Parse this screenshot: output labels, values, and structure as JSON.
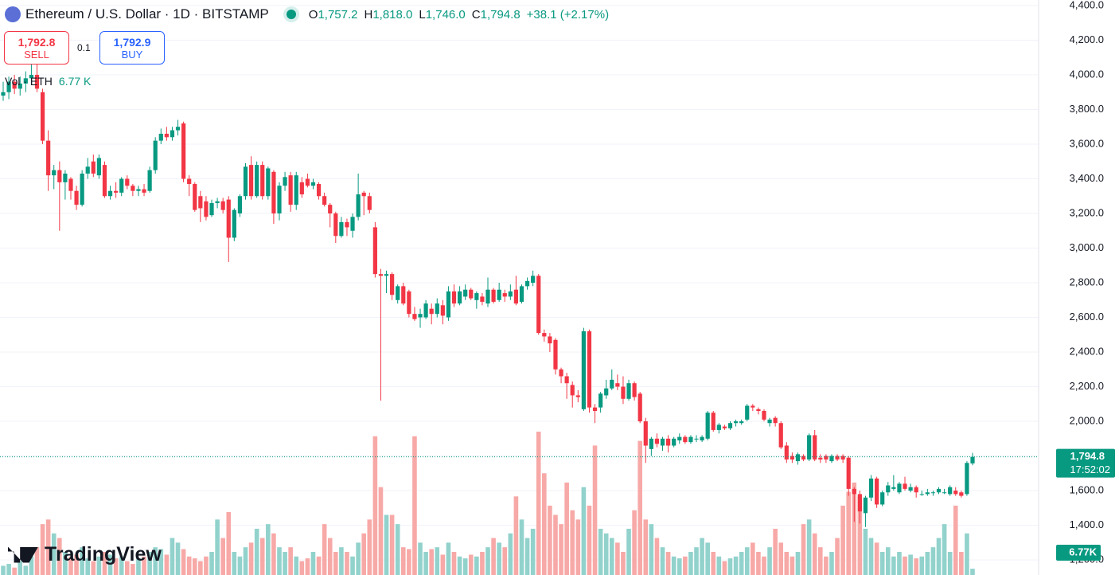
{
  "header": {
    "symbol": "Ethereum / U.S. Dollar · 1D · BITSTAMP",
    "ohlc": [
      {
        "key": "O",
        "value": "1,757.2"
      },
      {
        "key": "H",
        "value": "1,818.0"
      },
      {
        "key": "L",
        "value": "1,746.0"
      },
      {
        "key": "C",
        "value": "1,794.8"
      }
    ],
    "change": "+38.1 (+2.17%)"
  },
  "trade": {
    "sell_price": "1,792.8",
    "sell": "SELL",
    "spread": "0.1",
    "buy_price": "1,792.9",
    "buy": "BUY"
  },
  "volume_legend": {
    "label": "Vol · ETH",
    "value": "6.77 K"
  },
  "brand": "TradingView",
  "chart_data": {
    "type": "candlestick",
    "up_color": "#089981",
    "down_color": "#f23645",
    "up_volume_color": "#92d2cc",
    "down_volume_color": "#f7a9a7",
    "ylim": [
      1113,
      4432
    ],
    "yticks": [
      {
        "value": 1200,
        "label": "1,200.0"
      },
      {
        "value": 1400,
        "label": "1,400.0"
      },
      {
        "value": 1600,
        "label": "1,600.0"
      },
      {
        "value": 1800,
        "label": "1,800.0"
      },
      {
        "value": 2000,
        "label": "2,000.0"
      },
      {
        "value": 2200,
        "label": "2,200.0"
      },
      {
        "value": 2400,
        "label": "2,400.0"
      },
      {
        "value": 2600,
        "label": "2,600.0"
      },
      {
        "value": 2800,
        "label": "2,800.0"
      },
      {
        "value": 3000,
        "label": "3,000.0"
      },
      {
        "value": 3200,
        "label": "3,200.0"
      },
      {
        "value": 3400,
        "label": "3,400.0"
      },
      {
        "value": 3600,
        "label": "3,600.0"
      },
      {
        "value": 3800,
        "label": "3,800.0"
      },
      {
        "value": 4000,
        "label": "4,000.0"
      },
      {
        "value": 4200,
        "label": "4,200.0"
      },
      {
        "value": 4400,
        "label": "4,400.0"
      }
    ],
    "grid": true,
    "last_price": {
      "value": 1794.8,
      "label": "1,794.8",
      "countdown": "17:52:02"
    },
    "last_volume_label": "6.77K",
    "ohlc": [
      [
        3880,
        3960,
        3850,
        3900
      ],
      [
        3900,
        3990,
        3860,
        3960
      ],
      [
        3960,
        4000,
        3890,
        3920
      ],
      [
        3920,
        3990,
        3880,
        3950
      ],
      [
        3950,
        4020,
        3900,
        3980
      ],
      [
        3980,
        4070,
        3940,
        4000
      ],
      [
        4000,
        4090,
        3900,
        3920
      ],
      [
        3900,
        3920,
        3600,
        3620
      ],
      [
        3620,
        3680,
        3330,
        3420
      ],
      [
        3420,
        3480,
        3340,
        3450
      ],
      [
        3450,
        3500,
        3100,
        3380
      ],
      [
        3380,
        3450,
        3280,
        3430
      ],
      [
        3400,
        3410,
        3280,
        3330
      ],
      [
        3330,
        3360,
        3220,
        3250
      ],
      [
        3250,
        3450,
        3240,
        3430
      ],
      [
        3430,
        3520,
        3400,
        3470
      ],
      [
        3500,
        3540,
        3410,
        3430
      ],
      [
        3420,
        3540,
        3400,
        3520
      ],
      [
        3480,
        3500,
        3290,
        3300
      ],
      [
        3300,
        3360,
        3280,
        3330
      ],
      [
        3330,
        3380,
        3290,
        3320
      ],
      [
        3320,
        3410,
        3300,
        3400
      ],
      [
        3400,
        3420,
        3340,
        3360
      ],
      [
        3360,
        3370,
        3300,
        3330
      ],
      [
        3330,
        3360,
        3300,
        3340
      ],
      [
        3340,
        3370,
        3300,
        3320
      ],
      [
        3330,
        3470,
        3320,
        3450
      ],
      [
        3450,
        3640,
        3430,
        3620
      ],
      [
        3620,
        3690,
        3600,
        3660
      ],
      [
        3660,
        3700,
        3620,
        3640
      ],
      [
        3640,
        3700,
        3620,
        3680
      ],
      [
        3680,
        3740,
        3650,
        3700
      ],
      [
        3720,
        3730,
        3380,
        3400
      ],
      [
        3400,
        3420,
        3300,
        3370
      ],
      [
        3370,
        3380,
        3210,
        3220
      ],
      [
        3300,
        3330,
        3150,
        3230
      ],
      [
        3270,
        3300,
        3160,
        3180
      ],
      [
        3190,
        3280,
        3180,
        3260
      ],
      [
        3260,
        3290,
        3230,
        3270
      ],
      [
        3270,
        3290,
        3200,
        3220
      ],
      [
        3280,
        3300,
        2920,
        3060
      ],
      [
        3060,
        3230,
        3040,
        3220
      ],
      [
        3200,
        3310,
        3180,
        3300
      ],
      [
        3300,
        3490,
        3280,
        3470
      ],
      [
        3480,
        3530,
        3280,
        3300
      ],
      [
        3300,
        3500,
        3290,
        3480
      ],
      [
        3480,
        3500,
        3280,
        3300
      ],
      [
        3300,
        3470,
        3280,
        3460
      ],
      [
        3440,
        3450,
        3140,
        3200
      ],
      [
        3200,
        3380,
        3160,
        3360
      ],
      [
        3360,
        3440,
        3330,
        3410
      ],
      [
        3420,
        3440,
        3210,
        3250
      ],
      [
        3250,
        3440,
        3220,
        3420
      ],
      [
        3380,
        3410,
        3290,
        3310
      ],
      [
        3400,
        3430,
        3350,
        3360
      ],
      [
        3360,
        3400,
        3340,
        3380
      ],
      [
        3370,
        3380,
        3280,
        3300
      ],
      [
        3300,
        3320,
        3240,
        3250
      ],
      [
        3250,
        3260,
        3120,
        3200
      ],
      [
        3200,
        3210,
        3030,
        3070
      ],
      [
        3070,
        3180,
        3060,
        3150
      ],
      [
        3150,
        3170,
        3070,
        3120
      ],
      [
        3100,
        3200,
        3060,
        3180
      ],
      [
        3180,
        3430,
        3160,
        3310
      ],
      [
        3320,
        3330,
        3190,
        3300
      ],
      [
        3300,
        3320,
        3200,
        3220
      ],
      [
        3120,
        3150,
        2830,
        2850
      ],
      [
        2850,
        2880,
        2120,
        2840
      ],
      [
        2840,
        2870,
        2740,
        2850
      ],
      [
        2850,
        2860,
        2700,
        2730
      ],
      [
        2700,
        2790,
        2680,
        2780
      ],
      [
        2780,
        2800,
        2670,
        2680
      ],
      [
        2750,
        2760,
        2600,
        2620
      ],
      [
        2620,
        2660,
        2580,
        2590
      ],
      [
        2600,
        2650,
        2540,
        2620
      ],
      [
        2600,
        2700,
        2590,
        2680
      ],
      [
        2650,
        2680,
        2560,
        2620
      ],
      [
        2620,
        2710,
        2600,
        2680
      ],
      [
        2670,
        2700,
        2560,
        2610
      ],
      [
        2600,
        2780,
        2580,
        2750
      ],
      [
        2750,
        2790,
        2660,
        2680
      ],
      [
        2680,
        2780,
        2670,
        2750
      ],
      [
        2720,
        2790,
        2700,
        2760
      ],
      [
        2760,
        2770,
        2700,
        2710
      ],
      [
        2700,
        2750,
        2650,
        2740
      ],
      [
        2720,
        2740,
        2670,
        2690
      ],
      [
        2680,
        2830,
        2660,
        2760
      ],
      [
        2760,
        2770,
        2680,
        2690
      ],
      [
        2700,
        2800,
        2690,
        2760
      ],
      [
        2740,
        2760,
        2690,
        2720
      ],
      [
        2720,
        2790,
        2700,
        2750
      ],
      [
        2760,
        2840,
        2670,
        2680
      ],
      [
        2690,
        2790,
        2680,
        2780
      ],
      [
        2780,
        2830,
        2760,
        2810
      ],
      [
        2800,
        2870,
        2780,
        2840
      ],
      [
        2840,
        2850,
        2500,
        2510
      ],
      [
        2510,
        2530,
        2460,
        2490
      ],
      [
        2490,
        2510,
        2400,
        2450
      ],
      [
        2470,
        2480,
        2270,
        2300
      ],
      [
        2300,
        2310,
        2220,
        2260
      ],
      [
        2260,
        2280,
        2130,
        2220
      ],
      [
        2210,
        2230,
        2080,
        2150
      ],
      [
        2150,
        2180,
        2110,
        2140
      ],
      [
        2070,
        2540,
        2060,
        2520
      ],
      [
        2520,
        2530,
        2050,
        2080
      ],
      [
        2080,
        2100,
        1990,
        2060
      ],
      [
        2080,
        2170,
        2050,
        2160
      ],
      [
        2150,
        2240,
        2130,
        2190
      ],
      [
        2190,
        2300,
        2180,
        2240
      ],
      [
        2220,
        2270,
        2180,
        2200
      ],
      [
        2200,
        2260,
        2100,
        2130
      ],
      [
        2130,
        2240,
        2120,
        2220
      ],
      [
        2220,
        2230,
        2120,
        2140
      ],
      [
        2160,
        2170,
        1990,
        2000
      ],
      [
        2000,
        2020,
        1760,
        1860
      ],
      [
        1840,
        1910,
        1800,
        1900
      ],
      [
        1900,
        1930,
        1850,
        1870
      ],
      [
        1860,
        1910,
        1830,
        1900
      ],
      [
        1900,
        1920,
        1820,
        1860
      ],
      [
        1860,
        1910,
        1850,
        1900
      ],
      [
        1890,
        1930,
        1870,
        1910
      ],
      [
        1910,
        1920,
        1870,
        1880
      ],
      [
        1880,
        1920,
        1870,
        1910
      ],
      [
        1900,
        1920,
        1880,
        1900
      ],
      [
        1890,
        1920,
        1880,
        1910
      ],
      [
        1900,
        2060,
        1890,
        2050
      ],
      [
        2050,
        2060,
        1940,
        1950
      ],
      [
        1950,
        1990,
        1930,
        1980
      ],
      [
        1970,
        1980,
        1950,
        1960
      ],
      [
        1960,
        2000,
        1950,
        1990
      ],
      [
        1990,
        2010,
        1970,
        2000
      ],
      [
        1990,
        2010,
        1980,
        2000
      ],
      [
        2010,
        2100,
        2000,
        2090
      ],
      [
        2090,
        2100,
        2060,
        2080
      ],
      [
        2070,
        2080,
        2040,
        2060
      ],
      [
        2060,
        2070,
        2000,
        2010
      ],
      [
        1990,
        2020,
        1970,
        2010
      ],
      [
        2020,
        2030,
        1970,
        1990
      ],
      [
        1990,
        2000,
        1840,
        1850
      ],
      [
        1860,
        1880,
        1760,
        1780
      ],
      [
        1800,
        1820,
        1760,
        1780
      ],
      [
        1770,
        1820,
        1750,
        1810
      ],
      [
        1800,
        1810,
        1770,
        1780
      ],
      [
        1780,
        1930,
        1770,
        1920
      ],
      [
        1920,
        1950,
        1770,
        1780
      ],
      [
        1790,
        1810,
        1760,
        1780
      ],
      [
        1800,
        1810,
        1760,
        1780
      ],
      [
        1770,
        1810,
        1760,
        1800
      ],
      [
        1800,
        1810,
        1770,
        1780
      ],
      [
        1800,
        1810,
        1760,
        1780
      ],
      [
        1790,
        1800,
        1570,
        1610
      ],
      [
        1610,
        1620,
        1420,
        1580
      ],
      [
        1580,
        1600,
        1410,
        1480
      ],
      [
        1470,
        1570,
        1390,
        1560
      ],
      [
        1560,
        1690,
        1540,
        1670
      ],
      [
        1670,
        1680,
        1500,
        1520
      ],
      [
        1520,
        1600,
        1510,
        1590
      ],
      [
        1590,
        1650,
        1570,
        1630
      ],
      [
        1610,
        1690,
        1600,
        1620
      ],
      [
        1590,
        1650,
        1580,
        1640
      ],
      [
        1640,
        1680,
        1600,
        1610
      ],
      [
        1600,
        1640,
        1590,
        1620
      ],
      [
        1620,
        1630,
        1560,
        1590
      ],
      [
        1580,
        1600,
        1570,
        1580
      ],
      [
        1580,
        1610,
        1570,
        1590
      ],
      [
        1590,
        1600,
        1570,
        1590
      ],
      [
        1590,
        1620,
        1580,
        1610
      ],
      [
        1590,
        1610,
        1580,
        1590
      ],
      [
        1580,
        1630,
        1570,
        1620
      ],
      [
        1600,
        1620,
        1570,
        1580
      ],
      [
        1590,
        1600,
        1560,
        1570
      ],
      [
        1580,
        1770,
        1570,
        1760
      ],
      [
        1757.2,
        1818,
        1746,
        1794.8
      ]
    ],
    "volume": [
      10,
      12,
      8,
      15,
      10,
      20,
      30,
      55,
      60,
      45,
      40,
      25,
      20,
      22,
      30,
      18,
      15,
      20,
      25,
      22,
      18,
      20,
      15,
      12,
      18,
      20,
      25,
      30,
      28,
      22,
      40,
      35,
      28,
      20,
      18,
      15,
      20,
      25,
      60,
      40,
      68,
      25,
      20,
      30,
      35,
      50,
      40,
      55,
      45,
      30,
      25,
      30,
      20,
      15,
      18,
      25,
      20,
      55,
      40,
      25,
      30,
      25,
      20,
      35,
      45,
      60,
      150,
      95,
      65,
      65,
      55,
      30,
      28,
      150,
      35,
      25,
      28,
      30,
      22,
      35,
      25,
      20,
      18,
      22,
      20,
      25,
      30,
      40,
      35,
      30,
      45,
      85,
      60,
      40,
      50,
      155,
      110,
      75,
      65,
      55,
      100,
      70,
      60,
      95,
      75,
      140,
      50,
      45,
      40,
      35,
      25,
      50,
      70,
      145,
      60,
      55,
      40,
      30,
      25,
      20,
      18,
      20,
      25,
      30,
      40,
      35,
      25,
      20,
      15,
      18,
      20,
      25,
      30,
      35,
      25,
      20,
      30,
      50,
      35,
      25,
      20,
      25,
      55,
      60,
      45,
      30,
      20,
      25,
      40,
      75,
      90,
      100,
      85,
      50,
      40,
      35,
      25,
      30,
      20,
      25,
      20,
      22,
      18,
      20,
      25,
      30,
      40,
      55,
      25,
      75,
      25,
      45,
      6.77
    ]
  }
}
